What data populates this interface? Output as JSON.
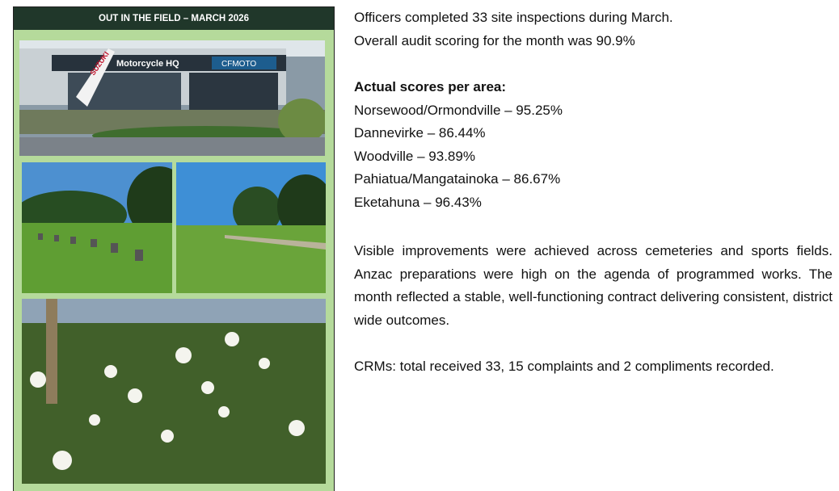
{
  "panel": {
    "heading": "OUT IN THE FIELD – MARCH 2026",
    "photo_signs": [
      "SUZUKI",
      "Motorcycle HQ",
      "CFMOTO"
    ]
  },
  "text": {
    "intro": [
      "Officers completed 33 site inspections during March.",
      "Overall audit scoring for the month was 90.9%"
    ],
    "scores_heading": "Actual scores per area:",
    "scores": [
      "Norsewood/Ormondville – 95.25%",
      "Dannevirke – 86.44%",
      "Woodville – 93.89%",
      "Pahiatua/Mangatainoka – 86.67%",
      "Eketahuna – 96.43%"
    ],
    "summary": "Visible improvements were achieved across cemeteries and sports fields. Anzac preparations were high on the agenda of programmed works. The month reflected a stable, well-functioning contract delivering consistent, district wide outcomes.",
    "crms": "CRMs: total received 33, 15 complaints and 2 compliments recorded."
  }
}
